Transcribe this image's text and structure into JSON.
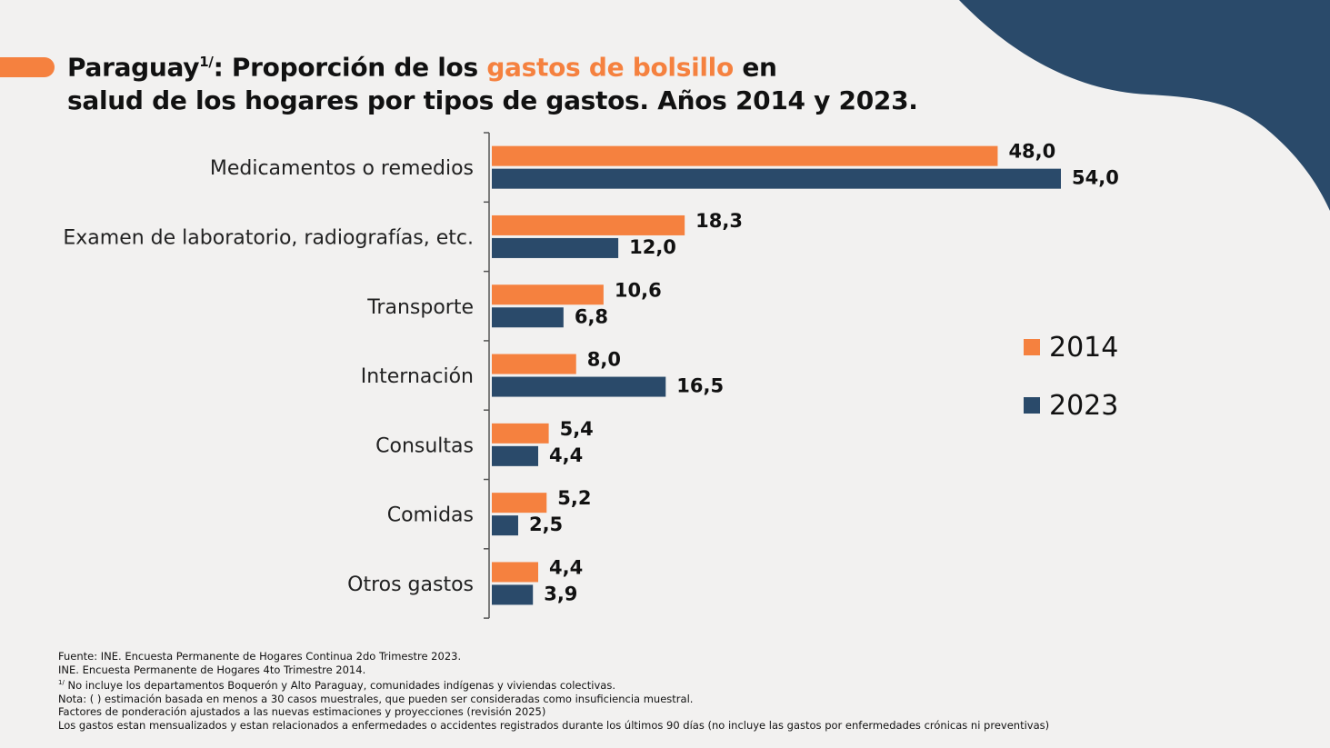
{
  "title": {
    "part1": "Paraguay",
    "sup": "1/",
    "part2": ": Proporción de los ",
    "highlight": "gastos de bolsillo",
    "part3": " en",
    "line2": "salud de los hogares por tipos de gastos. Años  2014 y 2023."
  },
  "chart_data": {
    "type": "bar",
    "orientation": "horizontal",
    "categories": [
      "Medicamentos o remedios",
      "Examen de laboratorio, radiografías, etc.",
      "Transporte",
      "Internación",
      "Consultas",
      "Comidas",
      "Otros gastos"
    ],
    "series": [
      {
        "name": "2014",
        "color": "#f5813f",
        "values": [
          48.0,
          18.3,
          10.6,
          8.0,
          5.4,
          5.2,
          4.4
        ],
        "labels": [
          "48,0",
          "18,3",
          "10,6",
          "8,0",
          "5,4",
          "5,2",
          "4,4"
        ]
      },
      {
        "name": "2023",
        "color": "#2a4a6a",
        "values": [
          54.0,
          12.0,
          6.8,
          16.5,
          4.4,
          2.5,
          3.9
        ],
        "labels": [
          "54,0",
          "12,0",
          "6,8",
          "16,5",
          "4,4",
          "2,5",
          "3,9"
        ]
      }
    ],
    "xlim": [
      0,
      54
    ],
    "legend_position": "right"
  },
  "legend": {
    "items": [
      {
        "label": "2014",
        "color": "#f5813f"
      },
      {
        "label": "2023",
        "color": "#2a4a6a"
      }
    ]
  },
  "footnotes": {
    "line1": "Fuente: INE. Encuesta Permanente de Hogares Continua 2do Trimestre 2023.",
    "line2": "INE. Encuesta Permanente de Hogares 4to Trimestre 2014.",
    "line3_sup": "1/",
    "line3": " No incluye los departamentos Boquerón y Alto Paraguay, comunidades indígenas y viviendas colectivas.",
    "line4": "Nota: ( ) estimación basada en menos a 30 casos muestrales, que pueden ser consideradas como insuficiencia muestral.",
    "line5": "Factores de ponderación ajustados a las nuevas estimaciones y proyecciones (revisión 2025)",
    "line6": "Los gastos estan mensualizados y estan relacionados a enfermedades o accidentes registrados durante los últimos 90 días (no incluye las gastos por enfermedades crónicas ni preventivas)"
  },
  "colors": {
    "accent": "#f5813f",
    "navy": "#2a4a6a",
    "background": "#f2f1f0"
  }
}
